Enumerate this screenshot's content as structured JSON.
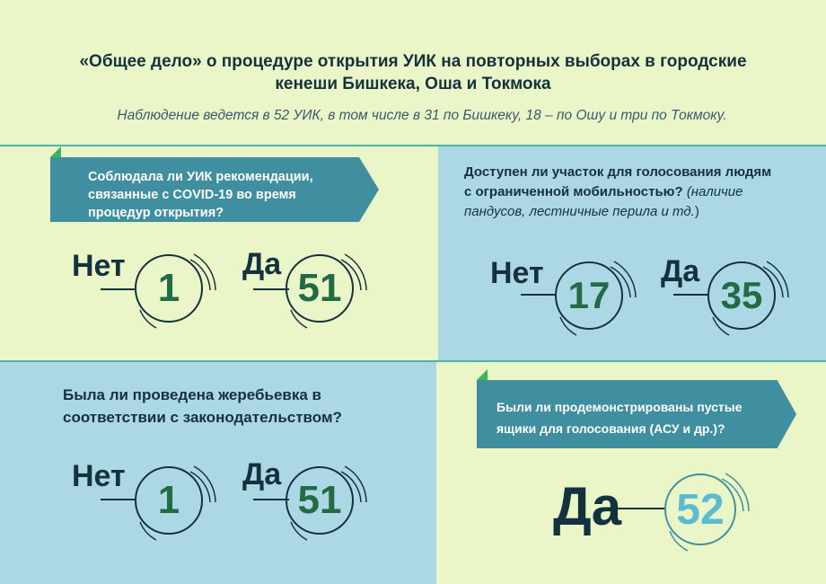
{
  "header": {
    "title_line1": "«Общее дело» о процедуре открытия УИК на повторных выборах в городские",
    "title_line2": "кенеши Бишкека, Оша и Токмока",
    "subtitle": "Наблюдение ведется в 52 УИК, в том числе в 31 по Бишкеку, 18 – по Ошу и три по Токмоку."
  },
  "blocks": [
    {
      "question_line1": "Соблюдала ли УИК рекомендации,",
      "question_line2": "связанные с COVID-19 во время",
      "question_line3": "процедур открытия?",
      "no_label": "Нет",
      "no_value": "1",
      "yes_label": "Да",
      "yes_value": "51"
    },
    {
      "question_line1": "Доступен ли участок для голосования людям",
      "question_line2": "с ограниченной мобильностью?",
      "question_note": "(наличие",
      "question_line3_italic": "пандусов, лестничные перила и тд.",
      "question_line3_tail": ")",
      "no_label": "Нет",
      "no_value": "17",
      "yes_label": "Да",
      "yes_value": "35"
    },
    {
      "question_line1": "Была ли проведена жеребьевка в",
      "question_line2": "соответствии с законодательством?",
      "no_label": "Нет",
      "no_value": "1",
      "yes_label": "Да",
      "yes_value": "51"
    },
    {
      "question_line1": "Были ли продемонстрированы пустые",
      "question_line2": "ящики для голосования (АСУ и др.)?",
      "yes_label": "Да",
      "yes_value": "52"
    }
  ],
  "colors": {
    "background_light": "#eaf6c7",
    "background_blue": "#acd8e5",
    "arrow_fill": "#3f8fa0",
    "value_green": "#236b44",
    "value_cyan": "#5bbcd0",
    "dark_text": "#14323d",
    "accent_line": "#4fb3a8"
  }
}
